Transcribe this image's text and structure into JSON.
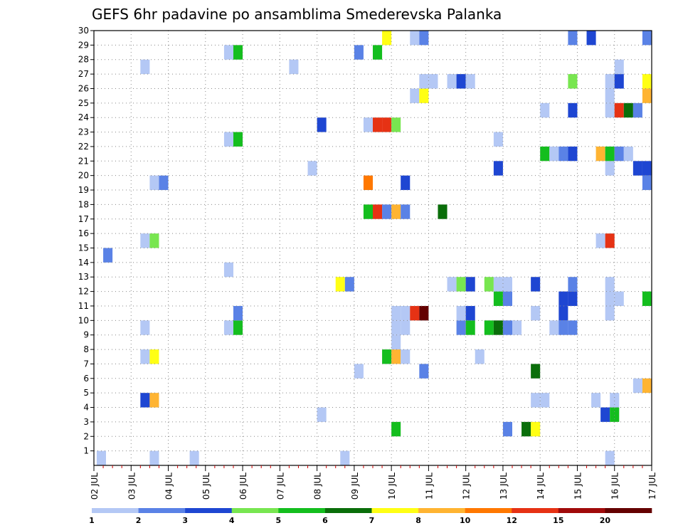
{
  "chart_data": {
    "type": "heatmap",
    "title": "GEFS 6hr padavine po ansamblima Smederevska Palanka",
    "x_labels": [
      "02 JUL",
      "03 JUL",
      "04 JUL",
      "05 JUL",
      "06 JUL",
      "07 JUL",
      "08 JUL",
      "09 JUL",
      "10 JUL",
      "11 JUL",
      "12 JUL",
      "13 JUL",
      "14 JUL",
      "15 JUL",
      "16 JUL",
      "17 JUL"
    ],
    "y_labels": [
      "1",
      "2",
      "3",
      "4",
      "5",
      "6",
      "7",
      "8",
      "9",
      "10",
      "11",
      "12",
      "13",
      "14",
      "15",
      "16",
      "17",
      "18",
      "19",
      "20",
      "21",
      "22",
      "23",
      "24",
      "25",
      "26",
      "27",
      "28",
      "29",
      "30"
    ],
    "xlim": [
      0,
      60
    ],
    "ylim": [
      0,
      30
    ],
    "grid": true,
    "levels": [
      1,
      2,
      3,
      4,
      5,
      6,
      7,
      8,
      10,
      12,
      15,
      20
    ],
    "level_labels": [
      "1",
      "2",
      "3",
      "4",
      "5",
      "6",
      "7",
      "8",
      "10",
      "12",
      "15",
      "20"
    ],
    "colors": [
      "#b4c8f5",
      "#5a82e6",
      "#1e46d2",
      "#78e650",
      "#14be1e",
      "#0a6e0a",
      "#ffff14",
      "#ffb432",
      "#ff7800",
      "#e63214",
      "#a00a0a",
      "#640000"
    ],
    "cells": [
      {
        "t": 0.8,
        "m": 0,
        "v": 1.5
      },
      {
        "t": 6.5,
        "m": 0,
        "v": 1.5
      },
      {
        "t": 10.8,
        "m": 0,
        "v": 1.5
      },
      {
        "t": 27,
        "m": 0,
        "v": 1.5
      },
      {
        "t": 55.5,
        "m": 0,
        "v": 1.5
      },
      {
        "t": 32.5,
        "m": 2,
        "v": 5
      },
      {
        "t": 44.5,
        "m": 2,
        "v": 2.5
      },
      {
        "t": 46.5,
        "m": 2,
        "v": 6
      },
      {
        "t": 47.5,
        "m": 2,
        "v": 7
      },
      {
        "t": 24.5,
        "m": 3,
        "v": 1.5
      },
      {
        "t": 55,
        "m": 3,
        "v": 3
      },
      {
        "t": 56,
        "m": 3,
        "v": 5
      },
      {
        "t": 5.5,
        "m": 4,
        "v": 3
      },
      {
        "t": 6.5,
        "m": 4,
        "v": 9
      },
      {
        "t": 47.5,
        "m": 4,
        "v": 1.5
      },
      {
        "t": 48.5,
        "m": 4,
        "v": 1.5
      },
      {
        "t": 54,
        "m": 4,
        "v": 1.5
      },
      {
        "t": 56,
        "m": 4,
        "v": 1.5
      },
      {
        "t": 58.5,
        "m": 5,
        "v": 1.5
      },
      {
        "t": 59.5,
        "m": 5,
        "v": 9
      },
      {
        "t": 28.5,
        "m": 6,
        "v": 1.5
      },
      {
        "t": 35.5,
        "m": 6,
        "v": 2.5
      },
      {
        "t": 47.5,
        "m": 6,
        "v": 6
      },
      {
        "t": 5.5,
        "m": 7,
        "v": 1.5
      },
      {
        "t": 6.5,
        "m": 7,
        "v": 7
      },
      {
        "t": 31.5,
        "m": 7,
        "v": 5
      },
      {
        "t": 32.5,
        "m": 7,
        "v": 9
      },
      {
        "t": 33.5,
        "m": 7,
        "v": 1.5
      },
      {
        "t": 41.5,
        "m": 7,
        "v": 1.5
      },
      {
        "t": 32.5,
        "m": 8,
        "v": 1.5
      },
      {
        "t": 5.5,
        "m": 9,
        "v": 1.5
      },
      {
        "t": 14.5,
        "m": 9,
        "v": 1.5
      },
      {
        "t": 15.5,
        "m": 9,
        "v": 5
      },
      {
        "t": 32.5,
        "m": 9,
        "v": 1.5
      },
      {
        "t": 33.5,
        "m": 9,
        "v": 1.5
      },
      {
        "t": 39.5,
        "m": 9,
        "v": 2.5
      },
      {
        "t": 40.5,
        "m": 9,
        "v": 5
      },
      {
        "t": 42.5,
        "m": 9,
        "v": 5
      },
      {
        "t": 43.5,
        "m": 9,
        "v": 6
      },
      {
        "t": 44.5,
        "m": 9,
        "v": 2.5
      },
      {
        "t": 45.5,
        "m": 9,
        "v": 1.5
      },
      {
        "t": 49.5,
        "m": 9,
        "v": 1.5
      },
      {
        "t": 50.5,
        "m": 9,
        "v": 2.5
      },
      {
        "t": 51.5,
        "m": 9,
        "v": 2.5
      },
      {
        "t": 15.5,
        "m": 10,
        "v": 2.5
      },
      {
        "t": 32.5,
        "m": 10,
        "v": 1.5
      },
      {
        "t": 33.5,
        "m": 10,
        "v": 1.5
      },
      {
        "t": 34.5,
        "m": 10,
        "v": 13
      },
      {
        "t": 35.5,
        "m": 10,
        "v": 25
      },
      {
        "t": 39.5,
        "m": 10,
        "v": 1.5
      },
      {
        "t": 40.5,
        "m": 10,
        "v": 3
      },
      {
        "t": 47.5,
        "m": 10,
        "v": 1.5
      },
      {
        "t": 50.5,
        "m": 10,
        "v": 3
      },
      {
        "t": 55.5,
        "m": 10,
        "v": 1.5
      },
      {
        "t": 43.5,
        "m": 11,
        "v": 5
      },
      {
        "t": 44.5,
        "m": 11,
        "v": 2.5
      },
      {
        "t": 50.5,
        "m": 11,
        "v": 3
      },
      {
        "t": 51.5,
        "m": 11,
        "v": 3
      },
      {
        "t": 55.5,
        "m": 11,
        "v": 1.5
      },
      {
        "t": 56.5,
        "m": 11,
        "v": 1.5
      },
      {
        "t": 59.5,
        "m": 11,
        "v": 5
      },
      {
        "t": 26.5,
        "m": 12,
        "v": 7
      },
      {
        "t": 27.5,
        "m": 12,
        "v": 2.5
      },
      {
        "t": 38.5,
        "m": 12,
        "v": 1.5
      },
      {
        "t": 39.5,
        "m": 12,
        "v": 4
      },
      {
        "t": 40.5,
        "m": 12,
        "v": 3
      },
      {
        "t": 42.5,
        "m": 12,
        "v": 4
      },
      {
        "t": 43.5,
        "m": 12,
        "v": 1.5
      },
      {
        "t": 44.5,
        "m": 12,
        "v": 1.5
      },
      {
        "t": 47.5,
        "m": 12,
        "v": 3
      },
      {
        "t": 51.5,
        "m": 12,
        "v": 2.5
      },
      {
        "t": 55.5,
        "m": 12,
        "v": 1.5
      },
      {
        "t": 14.5,
        "m": 13,
        "v": 1.5
      },
      {
        "t": 1.5,
        "m": 14,
        "v": 2.5
      },
      {
        "t": 5.5,
        "m": 15,
        "v": 1.5
      },
      {
        "t": 6.5,
        "m": 15,
        "v": 4
      },
      {
        "t": 54.5,
        "m": 15,
        "v": 1.5
      },
      {
        "t": 55.5,
        "m": 15,
        "v": 13
      },
      {
        "t": 29.5,
        "m": 17,
        "v": 5
      },
      {
        "t": 30.5,
        "m": 17,
        "v": 13
      },
      {
        "t": 31.5,
        "m": 17,
        "v": 2.5
      },
      {
        "t": 32.5,
        "m": 17,
        "v": 9
      },
      {
        "t": 33.5,
        "m": 17,
        "v": 2.5
      },
      {
        "t": 37.5,
        "m": 17,
        "v": 6
      },
      {
        "t": 6.5,
        "m": 19,
        "v": 1.5
      },
      {
        "t": 7.5,
        "m": 19,
        "v": 2.5
      },
      {
        "t": 29.5,
        "m": 19,
        "v": 11
      },
      {
        "t": 33.5,
        "m": 19,
        "v": 3
      },
      {
        "t": 59.5,
        "m": 19,
        "v": 2.5
      },
      {
        "t": 23.5,
        "m": 20,
        "v": 1.5
      },
      {
        "t": 43.5,
        "m": 20,
        "v": 3
      },
      {
        "t": 55.5,
        "m": 20,
        "v": 1.5
      },
      {
        "t": 58.5,
        "m": 20,
        "v": 3
      },
      {
        "t": 59.5,
        "m": 20,
        "v": 3
      },
      {
        "t": 48.5,
        "m": 21,
        "v": 5
      },
      {
        "t": 49.5,
        "m": 21,
        "v": 1.5
      },
      {
        "t": 50.5,
        "m": 21,
        "v": 2.5
      },
      {
        "t": 51.5,
        "m": 21,
        "v": 3
      },
      {
        "t": 54.5,
        "m": 21,
        "v": 9
      },
      {
        "t": 55.5,
        "m": 21,
        "v": 5
      },
      {
        "t": 56.5,
        "m": 21,
        "v": 2.5
      },
      {
        "t": 57.5,
        "m": 21,
        "v": 1.5
      },
      {
        "t": 14.5,
        "m": 22,
        "v": 1.5
      },
      {
        "t": 15.5,
        "m": 22,
        "v": 5
      },
      {
        "t": 43.5,
        "m": 22,
        "v": 1.5
      },
      {
        "t": 24.5,
        "m": 23,
        "v": 3
      },
      {
        "t": 29.5,
        "m": 23,
        "v": 1.5
      },
      {
        "t": 30.5,
        "m": 23,
        "v": 13
      },
      {
        "t": 31.5,
        "m": 23,
        "v": 13
      },
      {
        "t": 32.5,
        "m": 23,
        "v": 4
      },
      {
        "t": 48.5,
        "m": 24,
        "v": 1.5
      },
      {
        "t": 51.5,
        "m": 24,
        "v": 3
      },
      {
        "t": 55.5,
        "m": 24,
        "v": 1.5
      },
      {
        "t": 56.5,
        "m": 24,
        "v": 13
      },
      {
        "t": 57.5,
        "m": 24,
        "v": 6
      },
      {
        "t": 58.5,
        "m": 24,
        "v": 2.5
      },
      {
        "t": 34.5,
        "m": 25,
        "v": 1.5
      },
      {
        "t": 35.5,
        "m": 25,
        "v": 7
      },
      {
        "t": 55.5,
        "m": 25,
        "v": 1.5
      },
      {
        "t": 59.5,
        "m": 25,
        "v": 9
      },
      {
        "t": 35.5,
        "m": 26,
        "v": 1.5
      },
      {
        "t": 36.5,
        "m": 26,
        "v": 1.5
      },
      {
        "t": 38.5,
        "m": 26,
        "v": 1.5
      },
      {
        "t": 39.5,
        "m": 26,
        "v": 3
      },
      {
        "t": 40.5,
        "m": 26,
        "v": 1.5
      },
      {
        "t": 51.5,
        "m": 26,
        "v": 4
      },
      {
        "t": 55.5,
        "m": 26,
        "v": 1.5
      },
      {
        "t": 56.5,
        "m": 26,
        "v": 3
      },
      {
        "t": 59.5,
        "m": 26,
        "v": 7
      },
      {
        "t": 5.5,
        "m": 27,
        "v": 1.5
      },
      {
        "t": 21.5,
        "m": 27,
        "v": 1.5
      },
      {
        "t": 56.5,
        "m": 27,
        "v": 1.5
      },
      {
        "t": 14.5,
        "m": 28,
        "v": 1.5
      },
      {
        "t": 15.5,
        "m": 28,
        "v": 5
      },
      {
        "t": 28.5,
        "m": 28,
        "v": 2.5
      },
      {
        "t": 30.5,
        "m": 28,
        "v": 5
      },
      {
        "t": 31.5,
        "m": 29,
        "v": 7
      },
      {
        "t": 34.5,
        "m": 29,
        "v": 1.5
      },
      {
        "t": 35.5,
        "m": 29,
        "v": 2.5
      },
      {
        "t": 51.5,
        "m": 29,
        "v": 2.5
      },
      {
        "t": 53.5,
        "m": 29,
        "v": 3
      },
      {
        "t": 59.5,
        "m": 29,
        "v": 2.5
      }
    ]
  }
}
